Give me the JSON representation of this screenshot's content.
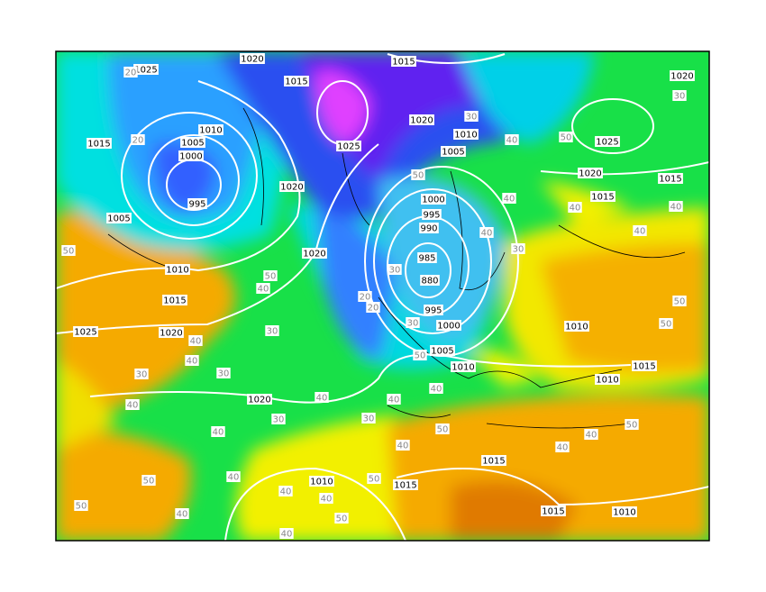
{
  "isobar_labels": [
    1020,
    1015,
    1025,
    1015,
    1020,
    1010,
    1015,
    1005,
    1025,
    1020,
    1010,
    1005,
    1025,
    1000,
    1020,
    1020,
    1015,
    1015,
    995,
    1000,
    1005,
    995,
    990,
    1020,
    985,
    880,
    1010,
    1015,
    995,
    1000,
    1010,
    1025,
    1020,
    1005,
    1010,
    1015,
    1010,
    1020,
    1015,
    1010,
    1015,
    1015,
    1010
  ],
  "thickness_labels": [
    20,
    30,
    50,
    20,
    30,
    40,
    50,
    40,
    40,
    40,
    50,
    40,
    30,
    30,
    50,
    40,
    30,
    20,
    20,
    30,
    40,
    50,
    40,
    30,
    40,
    40,
    40,
    30,
    40,
    30,
    50,
    40,
    40,
    30,
    40,
    40,
    50,
    40,
    40,
    40,
    50,
    50,
    40,
    40,
    50,
    50,
    50,
    50,
    40
  ]
}
